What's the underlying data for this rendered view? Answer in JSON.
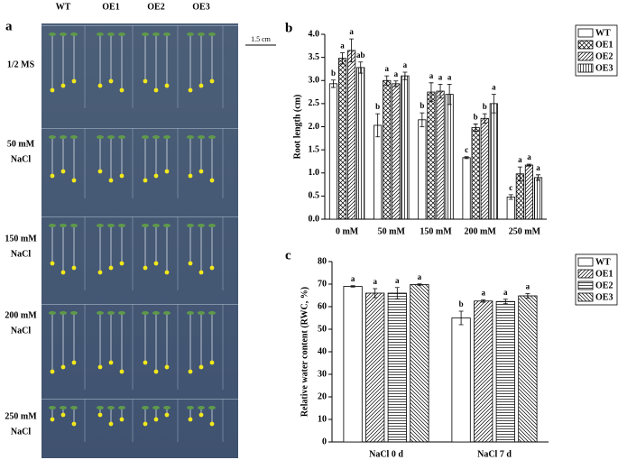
{
  "photo": {
    "label": "a",
    "columns": [
      "WT",
      "OE1",
      "OE2",
      "OE3"
    ],
    "rows": [
      [
        "1/2 MS"
      ],
      [
        "50 mM",
        "NaCl"
      ],
      [
        "150 mM",
        "NaCl"
      ],
      [
        "200 mM",
        "NaCl"
      ],
      [
        "250 mM",
        "NaCl"
      ]
    ],
    "scale_bar": "1.5 cm"
  },
  "chart_data": [
    {
      "type": "bar",
      "panel": "b",
      "ylabel": "Root length (cm)",
      "categories": [
        "0 mM",
        "50 mM",
        "150 mM",
        "200 mM",
        "250 mM"
      ],
      "series": [
        {
          "name": "WT",
          "color": "#000000",
          "pattern": "none",
          "values": [
            2.93,
            2.03,
            2.15,
            1.33,
            0.48
          ],
          "errors": [
            0.08,
            0.25,
            0.15,
            0.02,
            0.05
          ],
          "letters": [
            "b",
            "b",
            "b",
            "c",
            "c"
          ]
        },
        {
          "name": "OE1",
          "color": "#000000",
          "pattern": "crosshatch",
          "values": [
            3.48,
            3.0,
            2.75,
            1.98,
            0.98
          ],
          "errors": [
            0.12,
            0.1,
            0.2,
            0.08,
            0.15
          ],
          "letters": [
            "a",
            "a",
            "a",
            "b",
            "a"
          ]
        },
        {
          "name": "OE2",
          "color": "#000000",
          "pattern": "diagonal",
          "values": [
            3.65,
            2.93,
            2.77,
            2.18,
            1.17
          ],
          "errors": [
            0.25,
            0.06,
            0.15,
            0.1,
            0.02
          ],
          "letters": [
            "a",
            "a",
            "a",
            "b",
            "a"
          ]
        },
        {
          "name": "OE3",
          "color": "#000000",
          "pattern": "vertical",
          "values": [
            3.28,
            3.1,
            2.7,
            2.5,
            0.9
          ],
          "errors": [
            0.12,
            0.08,
            0.22,
            0.2,
            0.06
          ],
          "letters": [
            "ab",
            "a",
            "a",
            "a",
            "a"
          ]
        }
      ],
      "ylim": [
        0,
        4
      ],
      "yticks": [
        {
          "value": 0,
          "label": "0.0"
        },
        {
          "value": 0.5,
          "label": "0.5"
        },
        {
          "value": 1,
          "label": "1.0"
        },
        {
          "value": 1.5,
          "label": "1.5"
        },
        {
          "value": 2,
          "label": "2.0"
        },
        {
          "value": 2.5,
          "label": "2.5"
        },
        {
          "value": 3,
          "label": "3.0"
        },
        {
          "value": 3.5,
          "label": "3.5"
        },
        {
          "value": 4,
          "label": "4.0"
        }
      ],
      "legend": "outside-right"
    },
    {
      "type": "bar",
      "panel": "c",
      "ylabel": "Relative water content (RWC, %)",
      "categories": [
        "NaCl 0 d",
        "NaCl 7 d"
      ],
      "series": [
        {
          "name": "WT",
          "color": "#000000",
          "pattern": "none",
          "values": [
            69,
            55
          ],
          "errors": [
            0.3,
            3
          ],
          "letters": [
            "a",
            "b"
          ]
        },
        {
          "name": "OE1",
          "color": "#000000",
          "pattern": "diagonal",
          "values": [
            66,
            62.5
          ],
          "errors": [
            2,
            0.5
          ],
          "letters": [
            "a",
            "a"
          ]
        },
        {
          "name": "OE2",
          "color": "#000000",
          "pattern": "horizontal",
          "values": [
            66,
            62.3
          ],
          "errors": [
            2.5,
            1
          ],
          "letters": [
            "a",
            "a"
          ]
        },
        {
          "name": "OE3",
          "color": "#000000",
          "pattern": "backdiagonal",
          "values": [
            69.8,
            64.8
          ],
          "errors": [
            0.3,
            1
          ],
          "letters": [
            "a",
            "a"
          ]
        }
      ],
      "ylim": [
        0,
        80
      ],
      "yticks": [
        0,
        10,
        20,
        30,
        40,
        50,
        60,
        70,
        80
      ],
      "legend": "outside-right"
    }
  ]
}
